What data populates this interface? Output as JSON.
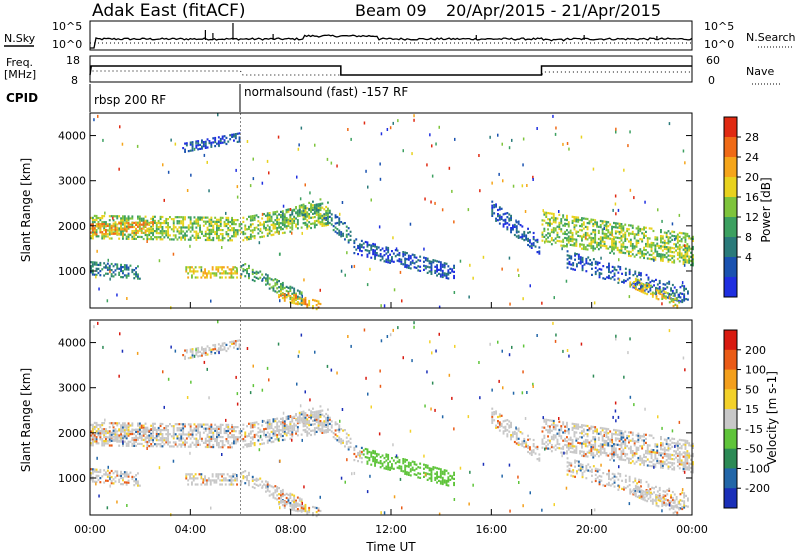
{
  "header": {
    "station": "Adak East (fitACF)",
    "beam": "Beam 09",
    "dates": "20/Apr/2015 - 21/Apr/2015"
  },
  "panels": {
    "nsky_label": "N.Sky",
    "nsky_ticks": [
      "10^5",
      "10^0"
    ],
    "nsearch_label": "N.Search",
    "nsearch_ticks": [
      "10^5",
      "10^0"
    ],
    "freq_label": "Freq.",
    "freq_unit": "[MHz]",
    "freq_ticks": [
      "18",
      "8"
    ],
    "nave_label": "Nave",
    "nave_ticks": [
      "60",
      "0"
    ],
    "cpid_label": "CPID",
    "cpid_segments": [
      "rbsp 200 RF",
      "normalsound (fast) -157 RF"
    ]
  },
  "chart_data": [
    {
      "type": "heatmap",
      "name": "power-panel",
      "ylabel": "Slant Range [km]",
      "xlabel": "",
      "xlim": [
        0,
        24
      ],
      "ylim": [
        180,
        4500
      ],
      "ticks_y": [
        "1000",
        "2000",
        "3000",
        "4000"
      ],
      "colorbar": {
        "label": "Power [dB]",
        "ticks": [
          "28",
          "24",
          "20",
          "16",
          "12",
          "8",
          "4"
        ],
        "colors": [
          "#1f2fe0",
          "#1a52b0",
          "#2a7a7a",
          "#3ca060",
          "#7ec43c",
          "#e8d21e",
          "#f5a51a",
          "#ef6a16",
          "#e02a12"
        ]
      }
    },
    {
      "type": "heatmap",
      "name": "velocity-panel",
      "ylabel": "Slant Range [km]",
      "xlabel": "Time UT",
      "xlim": [
        0,
        24
      ],
      "ylim": [
        180,
        4500
      ],
      "ticks_x": [
        "00:00",
        "04:00",
        "08:00",
        "12:00",
        "16:00",
        "20:00",
        "00:00"
      ],
      "ticks_y": [
        "1000",
        "2000",
        "3000",
        "4000"
      ],
      "colorbar": {
        "label": "Velocity [m s-1]",
        "ticks": [
          "200",
          "100",
          "50",
          "15",
          "-15",
          "-50",
          "-100",
          "-200"
        ],
        "colors": [
          "#1a2fb8",
          "#2266a8",
          "#2c8a55",
          "#5fc43a",
          "#c8c8c8",
          "#f3d12a",
          "#f39f1c",
          "#ea5b16",
          "#d81a10"
        ]
      }
    }
  ]
}
